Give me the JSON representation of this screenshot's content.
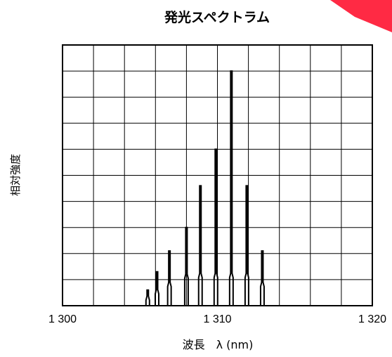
{
  "chart_data": {
    "type": "line",
    "title": "発光スペクトラム",
    "xlabel": "波長　λ (nm)",
    "ylabel": "相対強度",
    "xlim": [
      1300,
      1320
    ],
    "ylim": [
      0,
      1
    ],
    "x_ticks": [
      1300,
      1310,
      1320
    ],
    "x_tick_labels": [
      "1 300",
      "1 310",
      "1 320"
    ],
    "grid": true,
    "grid_divisions": {
      "x": 10,
      "y": 10
    },
    "series": [
      {
        "peaks": [
          {
            "x": 1305.5,
            "y": 0.06
          },
          {
            "x": 1306.1,
            "y": 0.13
          },
          {
            "x": 1306.9,
            "y": 0.21
          },
          {
            "x": 1308.0,
            "y": 0.3
          },
          {
            "x": 1308.9,
            "y": 0.46
          },
          {
            "x": 1309.9,
            "y": 0.6
          },
          {
            "x": 1310.9,
            "y": 0.9
          },
          {
            "x": 1311.9,
            "y": 0.46
          },
          {
            "x": 1312.9,
            "y": 0.21
          }
        ]
      }
    ],
    "colors": {
      "line": "#000000",
      "grid": "#000000",
      "watermark": "#ff1f3a"
    }
  }
}
